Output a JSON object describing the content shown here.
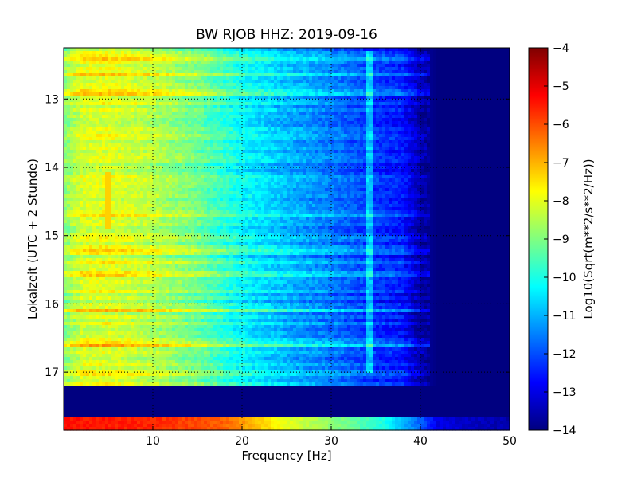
{
  "chart_data": {
    "type": "heatmap",
    "title": "BW RJOB HHZ: 2019-09-16",
    "xlabel": "Frequency [Hz]",
    "ylabel": "Lokalzeit (UTC + 2 Stunde)",
    "xlim": [
      0,
      50
    ],
    "ylim": [
      12.25,
      17.85
    ],
    "x_ticks": [
      10,
      20,
      30,
      40,
      50
    ],
    "y_ticks": [
      13,
      14,
      15,
      16,
      17
    ],
    "grid": true,
    "y_inverted": true,
    "colormap": "jet",
    "colorbar": {
      "label": "Log10(Sqrt(m**2/s**2/Hz))",
      "range": [
        -14,
        -4
      ],
      "ticks": [
        -4,
        -5,
        -6,
        -7,
        -8,
        -9,
        -10,
        -11,
        -12,
        -13,
        -14
      ]
    },
    "profile_frequencies_hz": [
      0,
      2,
      5,
      10,
      15,
      20,
      25,
      30,
      35,
      38,
      40,
      42,
      45,
      50
    ],
    "profile_levels": [
      -9,
      -8.2,
      -8.1,
      -8.5,
      -9.2,
      -10.3,
      -11.0,
      -11.6,
      -12.3,
      -12.6,
      -13.6,
      -14,
      -14,
      -14
    ],
    "data_gap": {
      "start_hour": 17.2,
      "end_hour": 17.67,
      "value": -14
    },
    "tail_segment": {
      "start_hour": 17.67,
      "end_hour": 17.85,
      "frequencies_hz": [
        0,
        10,
        18,
        25,
        32,
        36,
        40,
        42,
        44,
        50
      ],
      "levels": [
        -5.4,
        -5.6,
        -6.2,
        -8.0,
        -9.2,
        -10.0,
        -11.8,
        -13,
        -13.2,
        -13.6
      ]
    },
    "bright_bands_hours": [
      12.4,
      12.65,
      12.9,
      14.7,
      15.25,
      15.4,
      15.55,
      16.1,
      16.6,
      17.0
    ],
    "tonal_line": {
      "freq_hz": 34.3,
      "start_hour": 12.3,
      "end_hour": 17.0
    },
    "transient": {
      "freq_hz": 5,
      "start_hour": 14.05,
      "end_hour": 14.9,
      "level": -7.3
    }
  }
}
